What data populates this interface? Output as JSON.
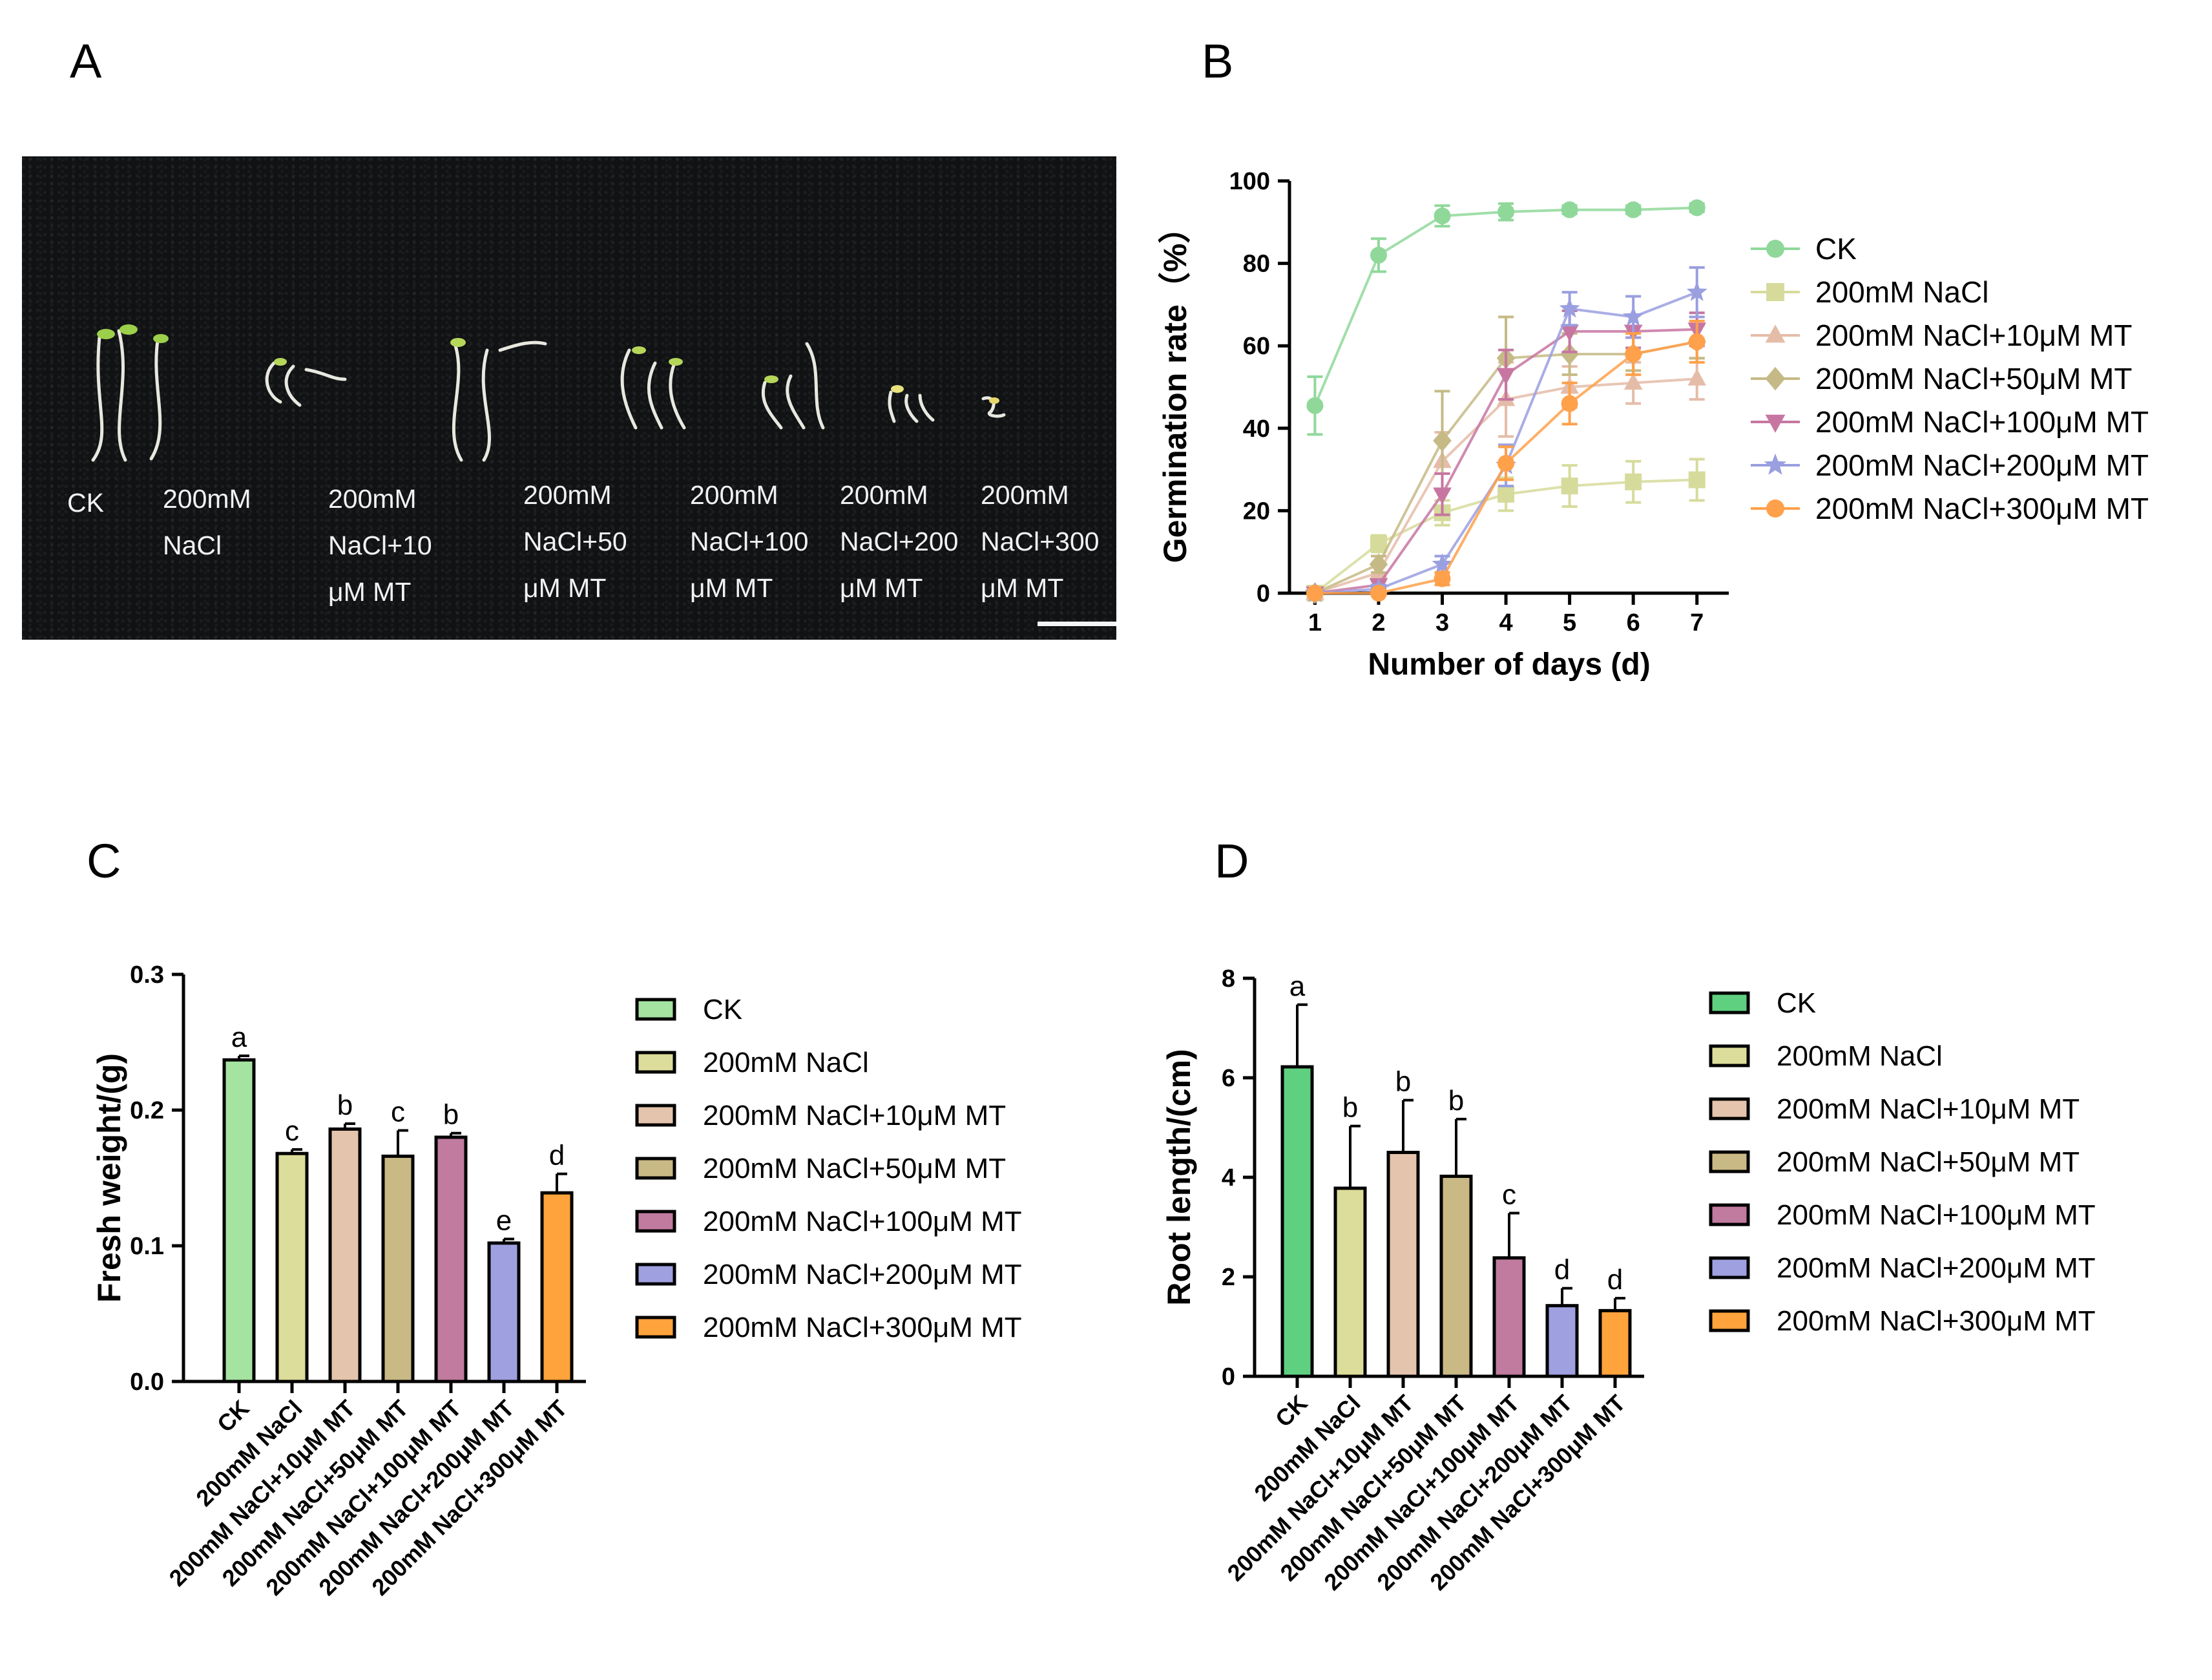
{
  "panels": {
    "a": "A",
    "b": "B",
    "c": "C",
    "d": "D"
  },
  "photo": {
    "labels": [
      "CK",
      "200mM\nNaCl",
      "200mM\nNaCl+10\nμM MT",
      "200mM\nNaCl+50\nμM MT",
      "200mM\nNaCl+100\nμM MT",
      "200mM\nNaCl+200\nμM MT",
      "200mM\nNaCl+300\nμM MT"
    ]
  },
  "treatments": [
    "CK",
    "200mM NaCl",
    "200mM NaCl+10μM MT",
    "200mM NaCl+50μM MT",
    "200mM NaCl+100μM MT",
    "200mM NaCl+200μM MT",
    "200mM NaCl+300μM MT"
  ],
  "chart_data": [
    {
      "id": "B",
      "type": "line",
      "xlabel": "Number of days (d)",
      "ylabel": "Germination rate（%）",
      "x": [
        1,
        2,
        3,
        4,
        5,
        6,
        7
      ],
      "xticks": [
        "1",
        "2",
        "3",
        "4",
        "5",
        "6",
        "7"
      ],
      "ylim": [
        0,
        100
      ],
      "yticks": [
        "0",
        "20",
        "40",
        "60",
        "80",
        "100"
      ],
      "legend_position": "right",
      "series": [
        {
          "name": "CK",
          "color": "#8fd89a",
          "marker": "circle",
          "values": [
            45.5,
            82,
            91.5,
            92.5,
            93,
            93,
            93.5
          ],
          "errors": [
            7,
            4,
            2.5,
            2,
            1,
            1,
            1
          ]
        },
        {
          "name": "200mM NaCl",
          "color": "#d6db9c",
          "marker": "square",
          "values": [
            0,
            12,
            19.5,
            24,
            26,
            27,
            27.5
          ],
          "errors": [
            0,
            2,
            3,
            4,
            5,
            5,
            5
          ]
        },
        {
          "name": "200mM NaCl+10μM MT",
          "color": "#e5bca8",
          "marker": "triangle-up",
          "values": [
            0,
            5,
            32,
            47,
            50,
            51,
            52
          ],
          "errors": [
            0,
            2,
            7,
            9,
            5,
            5,
            5
          ]
        },
        {
          "name": "200mM NaCl+50μM MT",
          "color": "#c5ba86",
          "marker": "diamond",
          "values": [
            0,
            7,
            37,
            57,
            58,
            58,
            61
          ],
          "errors": [
            0,
            2,
            12,
            10,
            5,
            4,
            4
          ]
        },
        {
          "name": "200mM NaCl+100μM MT",
          "color": "#c776a1",
          "marker": "triangle-down",
          "values": [
            0,
            2,
            24,
            53,
            63.5,
            63.5,
            64
          ],
          "errors": [
            0,
            1,
            5,
            6,
            5,
            4,
            4
          ]
        },
        {
          "name": "200mM NaCl+200μM MT",
          "color": "#9a9fe0",
          "marker": "star",
          "values": [
            0,
            1,
            7,
            31,
            69,
            67,
            73
          ],
          "errors": [
            0,
            1,
            2,
            5,
            4,
            5,
            6
          ]
        },
        {
          "name": "200mM NaCl+300μM MT",
          "color": "#ffa04a",
          "marker": "circle",
          "values": [
            0,
            0,
            3.5,
            31.5,
            46,
            58,
            61
          ],
          "errors": [
            0,
            0,
            1.5,
            4,
            5,
            5,
            5
          ]
        }
      ]
    },
    {
      "id": "C",
      "type": "bar",
      "ylabel": "Fresh weight/(g)",
      "xlabel": "",
      "categories": [
        "CK",
        "200mM NaCl",
        "200mM NaCl+10μM MT",
        "200mM NaCl+50μM MT",
        "200mM NaCl+100μM MT",
        "200mM NaCl+200μM MT",
        "200mM NaCl+300μM MT"
      ],
      "values": [
        0.237,
        0.168,
        0.186,
        0.166,
        0.18,
        0.102,
        0.139
      ],
      "errors": [
        0.003,
        0.003,
        0.004,
        0.019,
        0.003,
        0.003,
        0.014
      ],
      "letters": [
        "a",
        "c",
        "b",
        "c",
        "b",
        "e",
        "d"
      ],
      "colors": [
        "#a4e3a0",
        "#dcdd9b",
        "#e5c4ad",
        "#c9b985",
        "#c07b9f",
        "#9fa0e0",
        "#ffa33c"
      ],
      "ylim": [
        0,
        0.3
      ],
      "yticks": [
        "0.0",
        "0.1",
        "0.2",
        "0.3"
      ],
      "legend_position": "right"
    },
    {
      "id": "D",
      "type": "bar",
      "ylabel": "Root length/(cm)",
      "xlabel": "",
      "categories": [
        "CK",
        "200mM NaCl",
        "200mM NaCl+10μM MT",
        "200mM NaCl+50μM MT",
        "200mM NaCl+100μM MT",
        "200mM NaCl+200μM MT",
        "200mM NaCl+300μM MT"
      ],
      "values": [
        6.22,
        3.78,
        4.5,
        4.02,
        2.38,
        1.42,
        1.32
      ],
      "errors": [
        1.25,
        1.25,
        1.05,
        1.15,
        0.9,
        0.35,
        0.25
      ],
      "letters": [
        "a",
        "b",
        "b",
        "b",
        "c",
        "d",
        "d"
      ],
      "colors": [
        "#5fd07f",
        "#dcdd9b",
        "#e5c4ad",
        "#c9b985",
        "#c07b9f",
        "#9fa0e0",
        "#ffa33c"
      ],
      "ylim": [
        0,
        8
      ],
      "yticks": [
        "0",
        "2",
        "4",
        "6",
        "8"
      ],
      "legend_position": "right"
    }
  ]
}
